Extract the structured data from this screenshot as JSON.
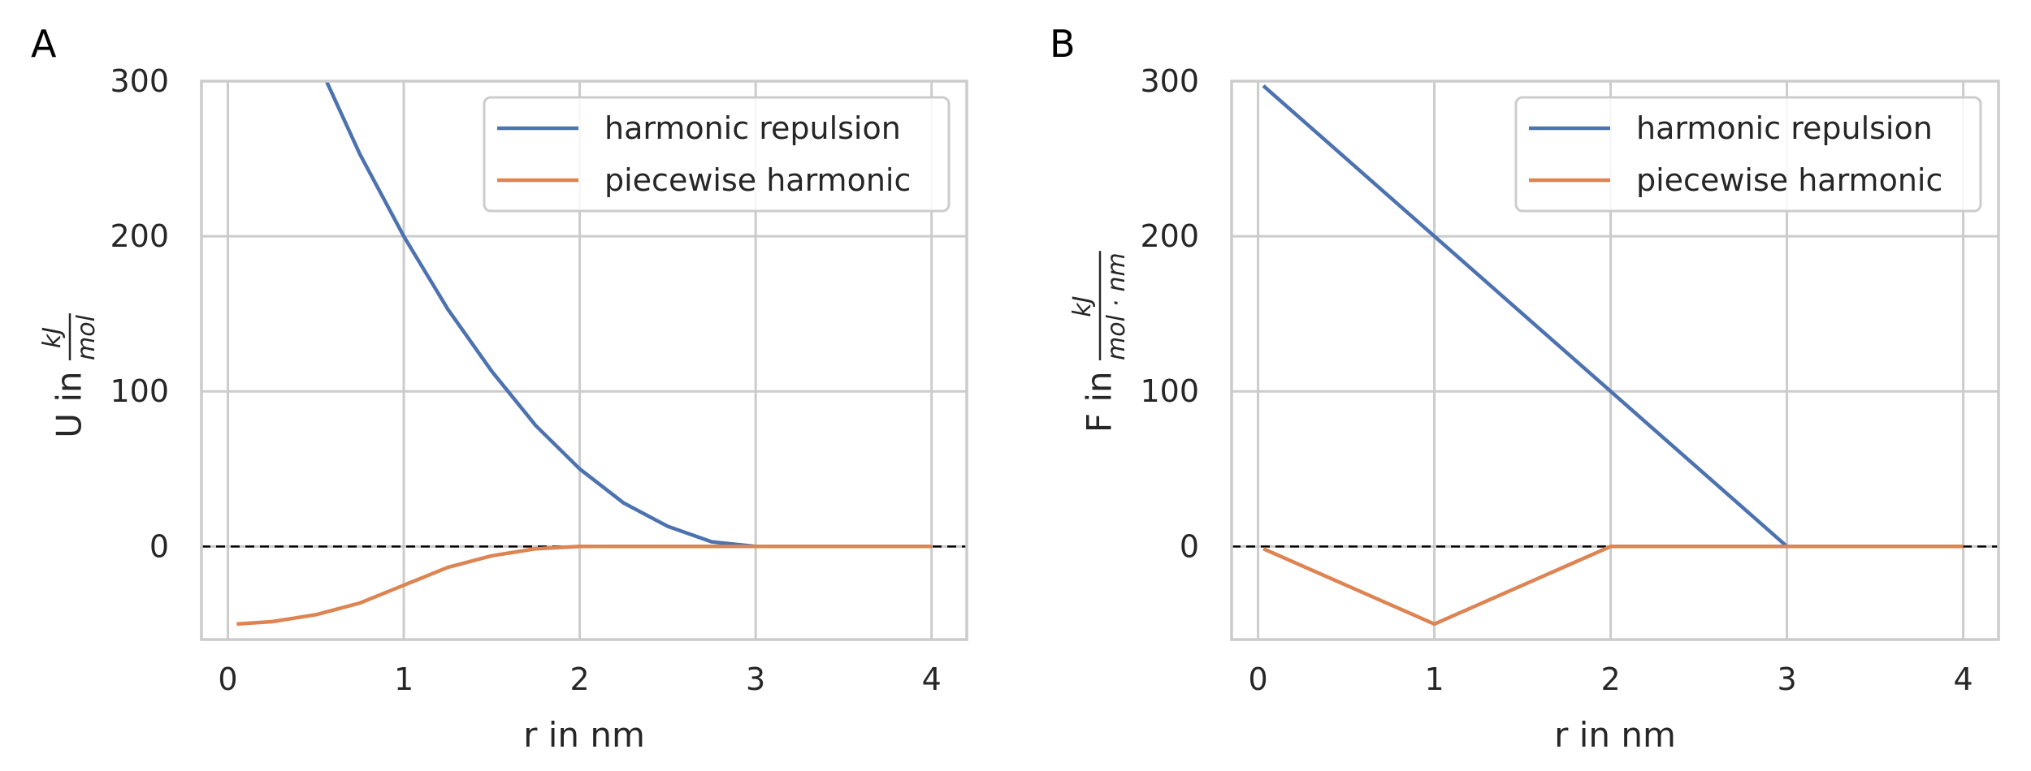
{
  "colors": {
    "harmonic_repulsion": "#4c72b0",
    "piecewise_harmonic": "#dd8452"
  },
  "chart_data": [
    {
      "panel": "A",
      "type": "line",
      "ylabel_prefix": "U in ",
      "ylabel_num": "kJ",
      "ylabel_den": "mol",
      "xlabel": "r in nm",
      "xlim": [
        -0.15,
        4.2
      ],
      "ylim": [
        -60,
        300
      ],
      "xticks": [
        0,
        1,
        2,
        3,
        4
      ],
      "yticks": [
        0,
        100,
        200,
        300
      ],
      "zero_line": true,
      "legend": "top-right",
      "grid": true,
      "series": [
        {
          "name": "harmonic repulsion",
          "color_key": "harmonic_repulsion",
          "x": [
            0.56,
            0.75,
            1.0,
            1.25,
            1.5,
            1.75,
            2.0,
            2.25,
            2.5,
            2.75,
            3.0,
            3.5,
            4.0
          ],
          "y": [
            300,
            253,
            200,
            153,
            113,
            78,
            50,
            28,
            13,
            3,
            0,
            0,
            0
          ]
        },
        {
          "name": "piecewise harmonic",
          "color_key": "piecewise_harmonic",
          "x": [
            0.05,
            0.25,
            0.5,
            0.75,
            1.0,
            1.25,
            1.5,
            1.75,
            2.0,
            2.5,
            3.0,
            3.5,
            4.0
          ],
          "y": [
            -50,
            -48.5,
            -44,
            -36.5,
            -25,
            -13.5,
            -6,
            -1.5,
            0,
            0,
            0,
            0,
            0
          ]
        }
      ]
    },
    {
      "panel": "B",
      "type": "line",
      "ylabel_prefix": "F in ",
      "ylabel_num": "kJ",
      "ylabel_den": "mol · nm",
      "xlabel": "r in nm",
      "xlim": [
        -0.15,
        4.2
      ],
      "ylim": [
        -60,
        300
      ],
      "xticks": [
        0,
        1,
        2,
        3,
        4
      ],
      "yticks": [
        0,
        100,
        200,
        300
      ],
      "zero_line": true,
      "legend": "top-right",
      "grid": true,
      "series": [
        {
          "name": "harmonic repulsion",
          "color_key": "harmonic_repulsion",
          "x": [
            0.03,
            1.0,
            2.0,
            3.0,
            4.0
          ],
          "y": [
            297,
            200,
            100,
            0,
            0
          ]
        },
        {
          "name": "piecewise harmonic",
          "color_key": "piecewise_harmonic",
          "x": [
            0.03,
            1.0,
            2.0,
            3.0,
            4.0
          ],
          "y": [
            -1.5,
            -50,
            0,
            0,
            0
          ]
        }
      ]
    }
  ]
}
